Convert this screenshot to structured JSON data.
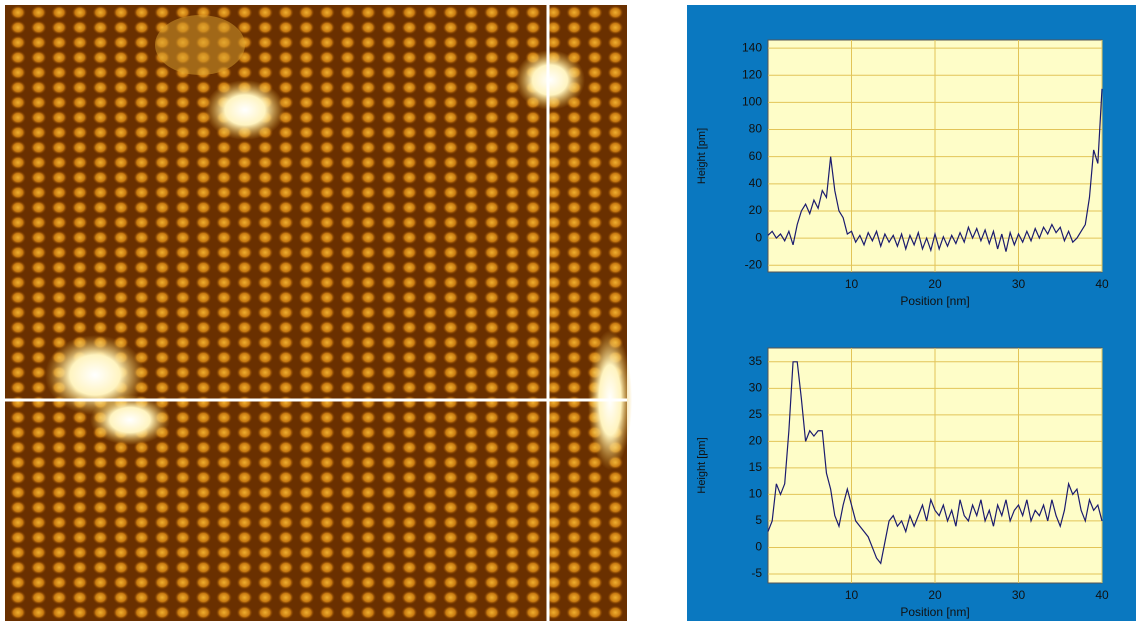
{
  "chart_data": [
    {
      "type": "line",
      "ylabel": "Height [pm]",
      "xlabel": "Position [nm]",
      "xlim": [
        0,
        40
      ],
      "xticks": [
        10,
        20,
        30,
        40
      ],
      "ylim": [
        -25,
        146
      ],
      "yticks": [
        -20,
        0,
        20,
        40,
        60,
        80,
        100,
        120,
        140
      ],
      "grid": true,
      "x": [
        0,
        0.5,
        1,
        1.5,
        2,
        2.5,
        3,
        3.5,
        4,
        4.5,
        5,
        5.5,
        6,
        6.5,
        7,
        7.5,
        8,
        8.5,
        9,
        9.5,
        10,
        10.5,
        11,
        11.5,
        12,
        12.5,
        13,
        13.5,
        14,
        14.5,
        15,
        15.5,
        16,
        16.5,
        17,
        17.5,
        18,
        18.5,
        19,
        19.5,
        20,
        20.5,
        21,
        21.5,
        22,
        22.5,
        23,
        23.5,
        24,
        24.5,
        25,
        25.5,
        26,
        26.5,
        27,
        27.5,
        28,
        28.5,
        29,
        29.5,
        30,
        30.5,
        31,
        31.5,
        32,
        32.5,
        33,
        33.5,
        34,
        34.5,
        35,
        35.5,
        36,
        36.5,
        37,
        37.5,
        38,
        38.5,
        39,
        39.5,
        40
      ],
      "series": [
        {
          "color": "#1b1b6e",
          "values": [
            2,
            5,
            0,
            3,
            -2,
            5,
            -5,
            10,
            20,
            25,
            18,
            28,
            22,
            35,
            30,
            60,
            35,
            20,
            15,
            3,
            5,
            -3,
            2,
            -5,
            4,
            -2,
            5,
            -6,
            3,
            -3,
            2,
            -6,
            3,
            -8,
            2,
            -5,
            4,
            -8,
            0,
            -9,
            3,
            -8,
            1,
            -6,
            2,
            -4,
            4,
            -3,
            8,
            0,
            7,
            -2,
            6,
            -4,
            5,
            -8,
            3,
            -10,
            4,
            -5,
            3,
            -3,
            5,
            -2,
            7,
            0,
            8,
            3,
            10,
            4,
            8,
            -2,
            5,
            -3,
            0,
            5,
            10,
            30,
            65,
            55,
            110
          ]
        }
      ]
    },
    {
      "type": "line",
      "ylabel": "Height [pm]",
      "xlabel": "Position [nm]",
      "xlim": [
        0,
        40
      ],
      "xticks": [
        10,
        20,
        30,
        40
      ],
      "ylim": [
        -6.7,
        37.6
      ],
      "yticks": [
        -5,
        0,
        5,
        10,
        15,
        20,
        25,
        30,
        35
      ],
      "grid": true,
      "x": [
        0,
        0.5,
        1,
        1.5,
        2,
        2.5,
        3,
        3.5,
        4,
        4.5,
        5,
        5.5,
        6,
        6.5,
        7,
        7.5,
        8,
        8.5,
        9,
        9.5,
        10,
        10.5,
        11,
        11.5,
        12,
        12.5,
        13,
        13.5,
        14,
        14.5,
        15,
        15.5,
        16,
        16.5,
        17,
        17.5,
        18,
        18.5,
        19,
        19.5,
        20,
        20.5,
        21,
        21.5,
        22,
        22.5,
        23,
        23.5,
        24,
        24.5,
        25,
        25.5,
        26,
        26.5,
        27,
        27.5,
        28,
        28.5,
        29,
        29.5,
        30,
        30.5,
        31,
        31.5,
        32,
        32.5,
        33,
        33.5,
        34,
        34.5,
        35,
        35.5,
        36,
        36.5,
        37,
        37.5,
        38,
        38.5,
        39,
        39.5,
        40
      ],
      "series": [
        {
          "color": "#1b1b6e",
          "values": [
            3,
            5,
            12,
            10,
            12,
            22,
            35,
            35,
            28,
            20,
            22,
            21,
            22,
            22,
            14,
            11,
            6,
            4,
            8,
            11,
            8,
            5,
            4,
            3,
            2,
            0,
            -2,
            -3,
            1,
            5,
            6,
            4,
            5,
            3,
            6,
            4,
            6,
            8,
            5,
            9,
            7,
            6,
            8,
            5,
            7,
            4,
            9,
            6,
            5,
            8,
            6,
            9,
            5,
            7,
            4,
            8,
            6,
            9,
            5,
            7,
            8,
            6,
            9,
            5,
            7,
            6,
            8,
            5,
            9,
            6,
            4,
            7,
            12,
            10,
            11,
            7,
            5,
            9,
            7,
            8,
            5
          ]
        }
      ]
    }
  ]
}
